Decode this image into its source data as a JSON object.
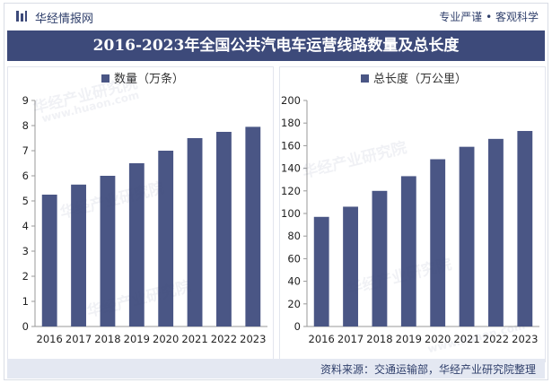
{
  "header": {
    "brand": "华经情报网",
    "slogan": "专业严谨 • 客观科学"
  },
  "title": "2016-2023年全国公共汽电车运营线路数量及总长度",
  "footer": {
    "source": "资料来源：交通运输部，华经产业研究院整理"
  },
  "watermark": {
    "text": "华经产业研究院",
    "url": "www.huaon.com"
  },
  "colors": {
    "bar": "#4a5685",
    "title_bg": "#3d4a7a",
    "text": "#2f3f6b"
  },
  "chart_data": [
    {
      "type": "bar",
      "legend": "数量（万条）",
      "categories": [
        "2016",
        "2017",
        "2018",
        "2019",
        "2020",
        "2021",
        "2022",
        "2023"
      ],
      "values": [
        5.25,
        5.65,
        6.0,
        6.5,
        7.0,
        7.5,
        7.75,
        7.95
      ],
      "ylim": [
        0,
        9
      ],
      "yticks": [
        0,
        1,
        2,
        3,
        4,
        5,
        6,
        7,
        8,
        9
      ]
    },
    {
      "type": "bar",
      "legend": "总长度（万公里）",
      "categories": [
        "2016",
        "2017",
        "2018",
        "2019",
        "2020",
        "2021",
        "2022",
        "2023"
      ],
      "values": [
        97,
        106,
        120,
        133,
        148,
        159,
        166,
        173
      ],
      "ylim": [
        0,
        200
      ],
      "yticks": [
        0,
        20,
        40,
        60,
        80,
        100,
        120,
        140,
        160,
        180,
        200
      ]
    }
  ]
}
